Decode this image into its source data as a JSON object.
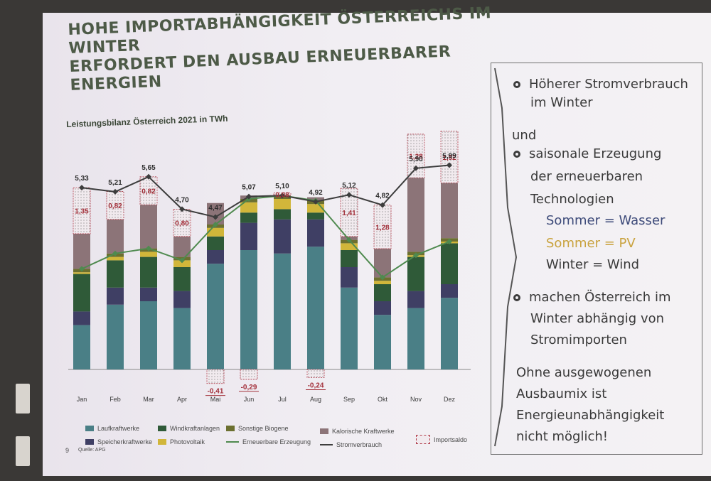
{
  "slide": {
    "title_line1": "HOHE IMPORTABHÄNGIGKEIT ÖSTERREICHS IM WINTER",
    "title_line2": "ERFORDERT DEN AUSBAU ERNEUERBARER ENERGIEN",
    "subtitle": "Leistungsbilanz Österreich 2021 in TWh",
    "page_number": "9",
    "source": "Quelle: APG"
  },
  "colors": {
    "laufkraftwerke": "#4a7f86",
    "speicherkraftwerke": "#3f3f64",
    "windkraftanlagen": "#2f5a38",
    "photovoltaik": "#d1b63a",
    "sonstige_biogene": "#6c7030",
    "kalorische_kraftwerke": "#8c7478",
    "importsaldo": "#f1eaee",
    "importsaldo_border": "#b03a48",
    "line_erneuerbar": "#4f8a4f",
    "line_verbrauch": "#3d3d3d",
    "value_red": "#a3303a"
  },
  "chart_data": {
    "type": "bar",
    "categories": [
      "Jan",
      "Feb",
      "Mar",
      "Apr",
      "Mai",
      "Jun",
      "Jul",
      "Aug",
      "Sep",
      "Okt",
      "Nov",
      "Dez"
    ],
    "consumption_labels": [
      "5,33",
      "5,21",
      "5,65",
      "4,70",
      "4,47",
      "5,07",
      "5,10",
      "4,92",
      "5,12",
      "4,82",
      "5,90",
      "5,99"
    ],
    "import_labels": [
      "1,35",
      "0,82",
      "0,82",
      "0,80",
      "-0,41",
      "-0,29",
      "0,08",
      "-0,24",
      "1,41",
      "1,28",
      "1,28",
      "1,52"
    ],
    "series": [
      {
        "name": "Laufkraftwerke",
        "values": [
          1.3,
          1.9,
          2.0,
          1.8,
          3.1,
          3.5,
          3.4,
          3.6,
          2.4,
          1.6,
          1.8,
          2.1
        ]
      },
      {
        "name": "Speicherkraftwerke",
        "values": [
          0.4,
          0.5,
          0.4,
          0.5,
          0.4,
          0.8,
          1.0,
          0.8,
          0.6,
          0.4,
          0.5,
          0.4
        ]
      },
      {
        "name": "Windkraftanlagen",
        "values": [
          1.1,
          0.8,
          0.9,
          0.7,
          0.4,
          0.3,
          0.3,
          0.2,
          0.5,
          0.5,
          1.0,
          1.2
        ]
      },
      {
        "name": "Photovoltaik",
        "values": [
          0.05,
          0.1,
          0.15,
          0.2,
          0.25,
          0.3,
          0.3,
          0.25,
          0.2,
          0.1,
          0.05,
          0.05
        ]
      },
      {
        "name": "Sonstige Biogene",
        "values": [
          0.1,
          0.1,
          0.1,
          0.1,
          0.1,
          0.1,
          0.1,
          0.1,
          0.1,
          0.1,
          0.1,
          0.1
        ]
      },
      {
        "name": "Kalorische Kraftwerke",
        "values": [
          1.03,
          1.0,
          1.28,
          0.6,
          0.63,
          0.1,
          0.0,
          0.1,
          0.1,
          0.84,
          2.17,
          1.62
        ]
      },
      {
        "name": "Importsaldo",
        "values": [
          1.35,
          0.82,
          0.82,
          0.8,
          -0.41,
          -0.29,
          0.08,
          -0.24,
          1.41,
          1.28,
          1.28,
          1.52
        ]
      }
    ],
    "line_series": [
      {
        "name": "Erneuerbare Erzeugung",
        "values": [
          2.95,
          3.4,
          3.55,
          3.2,
          4.25,
          5.0,
          5.1,
          4.95,
          3.8,
          2.7,
          3.35,
          3.75
        ]
      },
      {
        "name": "Stromverbrauch",
        "values": [
          5.33,
          5.21,
          5.65,
          4.7,
          4.47,
          5.07,
          5.1,
          4.92,
          5.12,
          4.82,
          5.9,
          5.99
        ]
      }
    ],
    "ylim": [
      -0.5,
      6.2
    ],
    "grid": false,
    "legend_position": "bottom"
  },
  "legend": [
    {
      "label": "Laufkraftwerke",
      "kind": "box",
      "color_key": "laufkraftwerke"
    },
    {
      "label": "Speicherkraftwerke",
      "kind": "box",
      "color_key": "speicherkraftwerke"
    },
    {
      "label": "Windkraftanlagen",
      "kind": "box",
      "color_key": "windkraftanlagen"
    },
    {
      "label": "Photovoltaik",
      "kind": "box",
      "color_key": "photovoltaik"
    },
    {
      "label": "Sonstige Biogene",
      "kind": "box",
      "color_key": "sonstige_biogene"
    },
    {
      "label": "Erneuerbare Erzeugung",
      "kind": "line",
      "color_key": "line_erneuerbar"
    },
    {
      "label": "Kalorische Kraftwerke",
      "kind": "box",
      "color_key": "kalorische_kraftwerke"
    },
    {
      "label": "Stromverbrauch",
      "kind": "line",
      "color_key": "line_verbrauch"
    },
    {
      "label": "Importsaldo",
      "kind": "hatch",
      "color_key": "importsaldo"
    }
  ],
  "right_panel": {
    "b1_line1": "Höherer Stromverbrauch",
    "b1_line2": "im Winter",
    "und": "und",
    "b2_line1": "saisonale Erzeugung",
    "b2_line2": "der erneuerbaren",
    "b2_line3": "Technologien",
    "sommer_wasser": "Sommer = Wasser",
    "sommer_pv": "Sommer = PV",
    "winter_wind": "Winter = Wind",
    "b3_line1": "machen Österreich im",
    "b3_line2": "Winter abhängig von",
    "b3_line3": "Stromimporten",
    "c_line1": "Ohne ausgewogenen",
    "c_line2": "Ausbaumix ist",
    "c_line3": "Energieunabhängigkeit",
    "c_line4": "nicht möglich!",
    "color_wasser": "#3e4b7a",
    "color_pv": "#c9a23e",
    "color_wind": "#3a3a3a"
  }
}
